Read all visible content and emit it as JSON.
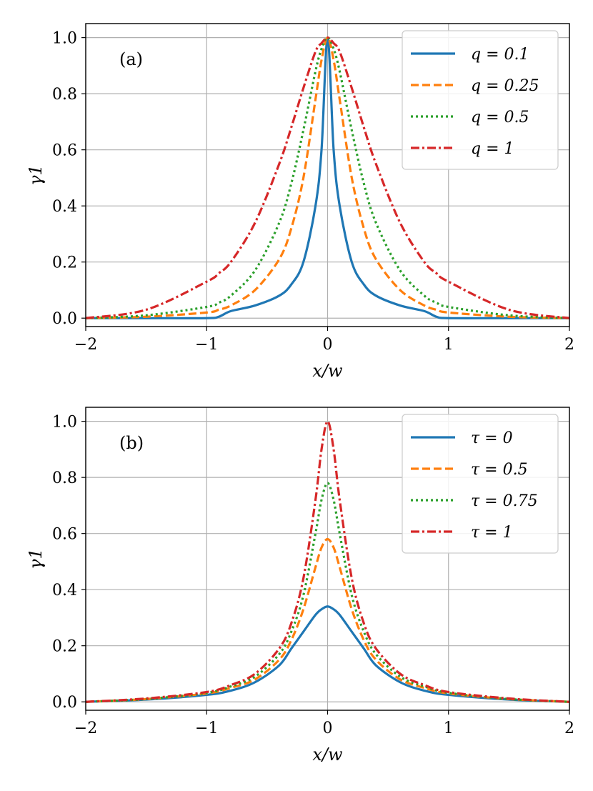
{
  "colors": {
    "blue": "#1f77b4",
    "orange": "#ff7f0e",
    "green": "#2ca02c",
    "red": "#d62728"
  },
  "chart_data": [
    {
      "type": "line",
      "panel_label": "(a)",
      "xlabel": "x/w",
      "ylabel": "γ1",
      "xlim": [
        -2.0,
        2.0
      ],
      "ylim": [
        -0.03,
        1.05
      ],
      "xticks": [
        -2,
        -1,
        0,
        1,
        2
      ],
      "xtick_labels": [
        "−2",
        "−1",
        "0",
        "1",
        "2"
      ],
      "yticks": [
        0.0,
        0.2,
        0.4,
        0.6,
        0.8,
        1.0
      ],
      "ytick_labels": [
        "0.0",
        "0.2",
        "0.4",
        "0.6",
        "0.8",
        "1.0"
      ],
      "grid": true,
      "legend_position": "top-right",
      "x": [
        -2.0,
        -1.5,
        -1.0,
        -0.9,
        -0.8,
        -0.6,
        -0.4,
        -0.3,
        -0.2,
        -0.1,
        -0.05,
        0.0,
        0.05,
        0.1,
        0.2,
        0.3,
        0.4,
        0.6,
        0.8,
        0.9,
        1.0,
        1.5,
        2.0
      ],
      "series": [
        {
          "name": "q = 0.1",
          "color": "blue",
          "dash": "solid",
          "values": [
            0.0,
            0.0,
            0.0,
            0.005,
            0.025,
            0.045,
            0.08,
            0.12,
            0.2,
            0.4,
            0.6,
            1.0,
            0.6,
            0.4,
            0.2,
            0.12,
            0.08,
            0.045,
            0.025,
            0.005,
            0.0,
            0.0,
            0.0
          ]
        },
        {
          "name": "q = 0.25",
          "color": "orange",
          "dash": "dashed",
          "values": [
            0.0,
            0.005,
            0.02,
            0.03,
            0.045,
            0.1,
            0.21,
            0.32,
            0.5,
            0.78,
            0.92,
            1.0,
            0.92,
            0.78,
            0.5,
            0.32,
            0.21,
            0.1,
            0.045,
            0.03,
            0.02,
            0.005,
            0.0
          ]
        },
        {
          "name": "q = 0.5",
          "color": "green",
          "dash": "dotted",
          "values": [
            0.0,
            0.01,
            0.04,
            0.055,
            0.08,
            0.17,
            0.34,
            0.48,
            0.67,
            0.88,
            0.96,
            1.0,
            0.96,
            0.88,
            0.67,
            0.48,
            0.34,
            0.17,
            0.08,
            0.055,
            0.04,
            0.01,
            0.0
          ]
        },
        {
          "name": "q = 1",
          "color": "red",
          "dash": "dashdot",
          "values": [
            0.0,
            0.03,
            0.13,
            0.16,
            0.2,
            0.34,
            0.55,
            0.68,
            0.82,
            0.95,
            0.98,
            1.0,
            0.98,
            0.95,
            0.82,
            0.68,
            0.55,
            0.34,
            0.2,
            0.16,
            0.13,
            0.03,
            0.0
          ]
        }
      ]
    },
    {
      "type": "line",
      "panel_label": "(b)",
      "xlabel": "x/w",
      "ylabel": "γ1",
      "xlim": [
        -2.0,
        2.0
      ],
      "ylim": [
        -0.03,
        1.05
      ],
      "xticks": [
        -2,
        -1,
        0,
        1,
        2
      ],
      "xtick_labels": [
        "−2",
        "−1",
        "0",
        "1",
        "2"
      ],
      "yticks": [
        0.0,
        0.2,
        0.4,
        0.6,
        0.8,
        1.0
      ],
      "ytick_labels": [
        "0.0",
        "0.2",
        "0.4",
        "0.6",
        "0.8",
        "1.0"
      ],
      "grid": true,
      "legend_position": "top-right",
      "x": [
        -2.0,
        -1.5,
        -1.0,
        -0.8,
        -0.6,
        -0.4,
        -0.3,
        -0.2,
        -0.1,
        -0.05,
        0.0,
        0.05,
        0.1,
        0.2,
        0.3,
        0.4,
        0.6,
        0.8,
        1.0,
        1.5,
        2.0
      ],
      "series": [
        {
          "name": "τ = 0",
          "color": "blue",
          "dash": "solid",
          "values": [
            0.0,
            0.008,
            0.025,
            0.04,
            0.07,
            0.13,
            0.19,
            0.25,
            0.31,
            0.33,
            0.34,
            0.33,
            0.31,
            0.25,
            0.19,
            0.13,
            0.07,
            0.04,
            0.025,
            0.008,
            0.0
          ]
        },
        {
          "name": "τ = 0.5",
          "color": "orange",
          "dash": "dashed",
          "values": [
            0.0,
            0.01,
            0.03,
            0.05,
            0.08,
            0.15,
            0.22,
            0.33,
            0.48,
            0.55,
            0.58,
            0.55,
            0.48,
            0.33,
            0.22,
            0.15,
            0.08,
            0.05,
            0.03,
            0.01,
            0.0
          ]
        },
        {
          "name": "τ = 0.75",
          "color": "green",
          "dash": "dotted",
          "values": [
            0.0,
            0.01,
            0.032,
            0.055,
            0.09,
            0.17,
            0.25,
            0.38,
            0.6,
            0.72,
            0.78,
            0.72,
            0.6,
            0.38,
            0.25,
            0.17,
            0.09,
            0.055,
            0.032,
            0.01,
            0.0
          ]
        },
        {
          "name": "τ = 1",
          "color": "red",
          "dash": "dashdot",
          "values": [
            0.0,
            0.012,
            0.035,
            0.06,
            0.1,
            0.19,
            0.28,
            0.44,
            0.72,
            0.9,
            1.0,
            0.9,
            0.72,
            0.44,
            0.28,
            0.19,
            0.1,
            0.06,
            0.035,
            0.012,
            0.0
          ]
        }
      ]
    }
  ]
}
